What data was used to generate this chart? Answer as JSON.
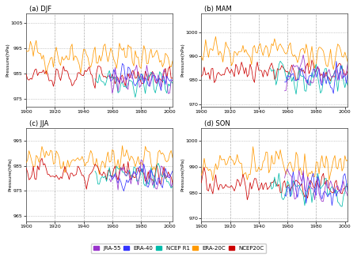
{
  "title_a": "(a) DJF",
  "title_b": "(b) MAM",
  "title_c": "(c) JJA",
  "title_d": "(d) SON",
  "ylabel": "Pressure(hPa)",
  "xstart": 1900,
  "xend": 2002,
  "xticks": [
    1900,
    1920,
    1940,
    1960,
    1980,
    2000
  ],
  "colors": {
    "JRA55": "#9933CC",
    "ERA40": "#3333FF",
    "NCEP_R1": "#00BBAA",
    "ERA20C": "#FF9900",
    "NCEP20C": "#CC0000"
  },
  "legend_labels": [
    "JRA-55",
    "ERA-40",
    "NCEP R1",
    "ERA-20C",
    "NCEP20C"
  ],
  "legend_colors": [
    "#9933CC",
    "#3333FF",
    "#00BBAA",
    "#FF9900",
    "#CC0000"
  ],
  "background": "#ffffff",
  "grid_color": "#999999",
  "panels": {
    "DJF": {
      "ylim": [
        972,
        1009
      ],
      "yticks": [
        975,
        985,
        995,
        1005
      ],
      "era20c_base": 993,
      "ncep20c_base": 984,
      "cluster_base": 983,
      "era20c_amp": 4.5,
      "ncep20c_amp": 3.0,
      "cluster_amp": 4.0
    },
    "MAM": {
      "ylim": [
        969,
        1008
      ],
      "yticks": [
        970,
        980,
        990,
        1000
      ],
      "era20c_base": 992,
      "ncep20c_base": 984,
      "cluster_base": 983,
      "era20c_amp": 4.0,
      "ncep20c_amp": 3.0,
      "cluster_amp": 4.5
    },
    "JJA": {
      "ylim": [
        963,
        1000
      ],
      "yticks": [
        965,
        975,
        985,
        995
      ],
      "era20c_base": 988,
      "ncep20c_base": 982,
      "cluster_base": 981,
      "era20c_amp": 3.5,
      "ncep20c_amp": 3.0,
      "cluster_amp": 4.0
    },
    "SON": {
      "ylim": [
        969,
        1005
      ],
      "yticks": [
        970,
        980,
        990,
        1000
      ],
      "era20c_base": 991,
      "ncep20c_base": 983,
      "cluster_base": 982,
      "era20c_amp": 4.0,
      "ncep20c_amp": 3.0,
      "cluster_amp": 4.5
    }
  }
}
